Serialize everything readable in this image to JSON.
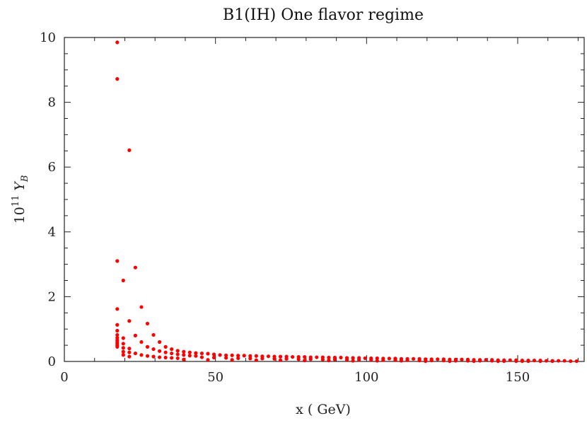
{
  "chart_data": {
    "type": "scatter",
    "title": "B1(IH) One flavor regime",
    "xlabel": "x ( GeV)",
    "ylabel_base": "10",
    "ylabel_exp": "11",
    "ylabel_var": "Y",
    "ylabel_sub": "B",
    "xlim": [
      0,
      172
    ],
    "ylim": [
      0,
      10
    ],
    "xticks": [
      0,
      50,
      100,
      150
    ],
    "yticks": [
      0,
      2,
      4,
      6,
      8,
      10
    ],
    "xtick_labels": [
      "0",
      "50",
      "100",
      "150"
    ],
    "ytick_labels": [
      "0",
      "2",
      "4",
      "6",
      "8",
      "10"
    ],
    "grid": false,
    "marker_color": "#ff0000",
    "series": [
      {
        "points": [
          [
            17.5,
            9.85
          ],
          [
            17.5,
            8.72
          ],
          [
            21.5,
            6.52
          ],
          [
            17.5,
            3.1
          ],
          [
            23.5,
            2.9
          ],
          [
            19.5,
            2.5
          ],
          [
            17.5,
            1.62
          ],
          [
            25.5,
            1.68
          ],
          [
            21.5,
            1.25
          ],
          [
            27.5,
            1.17
          ],
          [
            23.5,
            0.8
          ],
          [
            29.5,
            0.82
          ],
          [
            25.5,
            0.6
          ],
          [
            31.5,
            0.6
          ],
          [
            17.5,
            1.13
          ],
          [
            17.5,
            0.95
          ],
          [
            17.5,
            0.82
          ],
          [
            17.5,
            0.73
          ],
          [
            17.5,
            0.66
          ],
          [
            17.5,
            0.6
          ],
          [
            17.5,
            0.55
          ],
          [
            17.5,
            0.5
          ],
          [
            17.5,
            0.45
          ],
          [
            19.5,
            0.72
          ],
          [
            19.5,
            0.55
          ],
          [
            19.5,
            0.42
          ],
          [
            19.5,
            0.3
          ],
          [
            19.5,
            0.2
          ],
          [
            21.5,
            0.4
          ],
          [
            21.5,
            0.28
          ],
          [
            21.5,
            0.15
          ],
          [
            33.5,
            0.45
          ],
          [
            35.5,
            0.38
          ],
          [
            37.5,
            0.33
          ],
          [
            39.5,
            0.3
          ],
          [
            41.5,
            0.28
          ],
          [
            43.5,
            0.26
          ],
          [
            45.5,
            0.25
          ],
          [
            47.5,
            0.24
          ],
          [
            49.5,
            0.22
          ],
          [
            27.5,
            0.45
          ],
          [
            29.5,
            0.38
          ],
          [
            31.5,
            0.32
          ],
          [
            33.5,
            0.28
          ],
          [
            35.5,
            0.25
          ],
          [
            37.5,
            0.22
          ],
          [
            39.5,
            0.2
          ],
          [
            41.5,
            0.18
          ],
          [
            43.5,
            0.17
          ],
          [
            23.5,
            0.25
          ],
          [
            25.5,
            0.2
          ],
          [
            27.5,
            0.17
          ],
          [
            29.5,
            0.15
          ],
          [
            31.5,
            0.13
          ],
          [
            33.5,
            0.12
          ],
          [
            35.5,
            0.11
          ],
          [
            37.5,
            0.1
          ],
          [
            51.5,
            0.2
          ],
          [
            53.5,
            0.19
          ],
          [
            55.5,
            0.19
          ],
          [
            57.5,
            0.18
          ],
          [
            59.5,
            0.18
          ],
          [
            61.5,
            0.17
          ],
          [
            63.5,
            0.17
          ],
          [
            65.5,
            0.16
          ],
          [
            67.5,
            0.16
          ],
          [
            69.5,
            0.15
          ],
          [
            71.5,
            0.15
          ],
          [
            73.5,
            0.15
          ],
          [
            75.5,
            0.14
          ],
          [
            77.5,
            0.14
          ],
          [
            79.5,
            0.14
          ],
          [
            81.5,
            0.13
          ],
          [
            83.5,
            0.13
          ],
          [
            85.5,
            0.13
          ],
          [
            87.5,
            0.12
          ],
          [
            89.5,
            0.12
          ],
          [
            91.5,
            0.12
          ],
          [
            93.5,
            0.11
          ],
          [
            95.5,
            0.11
          ],
          [
            97.5,
            0.11
          ],
          [
            99.5,
            0.1
          ],
          [
            101.5,
            0.1
          ],
          [
            103.5,
            0.1
          ],
          [
            105.5,
            0.09
          ],
          [
            107.5,
            0.09
          ],
          [
            109.5,
            0.09
          ],
          [
            111.5,
            0.08
          ],
          [
            113.5,
            0.08
          ],
          [
            115.5,
            0.08
          ],
          [
            117.5,
            0.08
          ],
          [
            119.5,
            0.07
          ],
          [
            121.5,
            0.07
          ],
          [
            123.5,
            0.07
          ],
          [
            125.5,
            0.07
          ],
          [
            127.5,
            0.06
          ],
          [
            129.5,
            0.06
          ],
          [
            131.5,
            0.06
          ],
          [
            133.5,
            0.06
          ],
          [
            135.5,
            0.05
          ],
          [
            137.5,
            0.05
          ],
          [
            139.5,
            0.05
          ],
          [
            141.5,
            0.05
          ],
          [
            143.5,
            0.04
          ],
          [
            145.5,
            0.04
          ],
          [
            147.5,
            0.04
          ],
          [
            149.5,
            0.04
          ],
          [
            151.5,
            0.03
          ],
          [
            153.5,
            0.03
          ],
          [
            155.5,
            0.03
          ],
          [
            157.5,
            0.03
          ],
          [
            159.5,
            0.02
          ],
          [
            161.5,
            0.02
          ],
          [
            163.5,
            0.02
          ],
          [
            165.5,
            0.02
          ],
          [
            167.5,
            0.01
          ],
          [
            169.5,
            0.01
          ],
          [
            45.5,
            0.13
          ],
          [
            49.5,
            0.12
          ],
          [
            53.5,
            0.11
          ],
          [
            57.5,
            0.1
          ],
          [
            61.5,
            0.09
          ],
          [
            65.5,
            0.09
          ],
          [
            69.5,
            0.08
          ],
          [
            73.5,
            0.08
          ],
          [
            77.5,
            0.07
          ],
          [
            81.5,
            0.07
          ],
          [
            85.5,
            0.06
          ],
          [
            89.5,
            0.06
          ],
          [
            93.5,
            0.05
          ],
          [
            97.5,
            0.05
          ],
          [
            101.5,
            0.05
          ],
          [
            105.5,
            0.04
          ],
          [
            109.5,
            0.04
          ],
          [
            113.5,
            0.04
          ],
          [
            117.5,
            0.03
          ],
          [
            121.5,
            0.03
          ],
          [
            125.5,
            0.03
          ],
          [
            129.5,
            0.02
          ],
          [
            133.5,
            0.02
          ],
          [
            137.5,
            0.02
          ],
          [
            141.5,
            0.02
          ],
          [
            145.5,
            0.01
          ],
          [
            149.5,
            0.01
          ],
          [
            153.5,
            0.01
          ],
          [
            157.5,
            0.01
          ],
          [
            161.5,
            0.01
          ],
          [
            39.5,
            0.06
          ],
          [
            47.5,
            0.05
          ],
          [
            55.5,
            0.05
          ],
          [
            63.5,
            0.04
          ],
          [
            71.5,
            0.04
          ],
          [
            79.5,
            0.03
          ],
          [
            87.5,
            0.03
          ],
          [
            95.5,
            0.02
          ],
          [
            103.5,
            0.02
          ],
          [
            111.5,
            0.02
          ],
          [
            119.5,
            0.01
          ],
          [
            127.5,
            0.01
          ],
          [
            135.5,
            0.01
          ],
          [
            143.5,
            0.01
          ],
          [
            151.5,
            0.01
          ]
        ]
      }
    ]
  }
}
